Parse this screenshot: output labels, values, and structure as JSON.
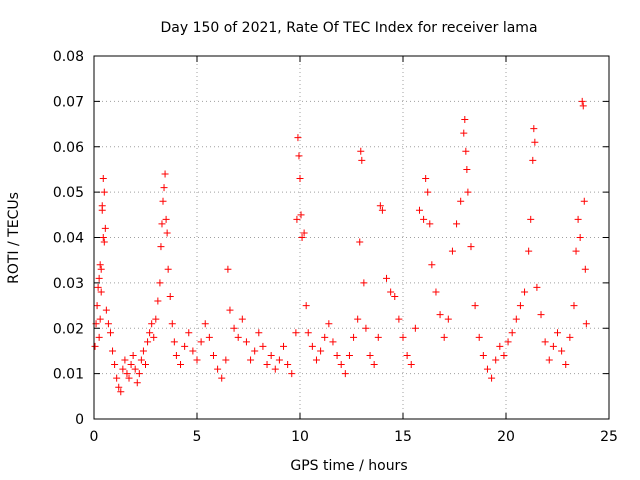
{
  "chart_data": {
    "type": "scatter",
    "title": "Day 150 of 2021, Rate Of TEC Index for receiver lama",
    "xlabel": "GPS time / hours",
    "ylabel": "ROTI / TECUs",
    "xlim": [
      0,
      25
    ],
    "ylim": [
      0,
      0.08
    ],
    "x_ticks": [
      0,
      5,
      10,
      15,
      20,
      25
    ],
    "x_tick_labels": [
      "0",
      "5",
      "10",
      "15",
      "20",
      "25"
    ],
    "y_ticks": [
      0,
      0.01,
      0.02,
      0.03,
      0.04,
      0.05,
      0.06,
      0.07,
      0.08
    ],
    "y_tick_labels": [
      "0",
      "0.01",
      "0.02",
      "0.03",
      "0.04",
      "0.05",
      "0.06",
      "0.07",
      "0.08"
    ],
    "grid": true,
    "marker": "plus",
    "color": "#ff0000",
    "series": [
      {
        "points": [
          [
            0.05,
            0.016
          ],
          [
            0.1,
            0.021
          ],
          [
            0.15,
            0.025
          ],
          [
            0.2,
            0.029
          ],
          [
            0.25,
            0.031
          ],
          [
            0.3,
            0.034
          ],
          [
            0.35,
            0.033
          ],
          [
            0.4,
            0.047
          ],
          [
            0.45,
            0.053
          ],
          [
            0.5,
            0.05
          ],
          [
            0.4,
            0.046
          ],
          [
            0.45,
            0.04
          ],
          [
            0.5,
            0.039
          ],
          [
            0.55,
            0.042
          ],
          [
            0.35,
            0.028
          ],
          [
            0.3,
            0.022
          ],
          [
            0.25,
            0.018
          ],
          [
            0.6,
            0.024
          ],
          [
            0.7,
            0.021
          ],
          [
            0.8,
            0.019
          ],
          [
            0.9,
            0.015
          ],
          [
            1.0,
            0.012
          ],
          [
            1.1,
            0.009
          ],
          [
            1.2,
            0.007
          ],
          [
            1.3,
            0.006
          ],
          [
            1.4,
            0.011
          ],
          [
            1.5,
            0.013
          ],
          [
            1.6,
            0.01
          ],
          [
            1.7,
            0.009
          ],
          [
            1.8,
            0.012
          ],
          [
            1.9,
            0.014
          ],
          [
            2.0,
            0.011
          ],
          [
            2.1,
            0.008
          ],
          [
            2.2,
            0.01
          ],
          [
            2.3,
            0.013
          ],
          [
            2.4,
            0.015
          ],
          [
            2.5,
            0.012
          ],
          [
            2.6,
            0.017
          ],
          [
            2.7,
            0.019
          ],
          [
            2.8,
            0.021
          ],
          [
            2.9,
            0.018
          ],
          [
            3.0,
            0.022
          ],
          [
            3.1,
            0.026
          ],
          [
            3.2,
            0.03
          ],
          [
            3.25,
            0.038
          ],
          [
            3.3,
            0.043
          ],
          [
            3.35,
            0.048
          ],
          [
            3.4,
            0.051
          ],
          [
            3.45,
            0.054
          ],
          [
            3.5,
            0.044
          ],
          [
            3.55,
            0.041
          ],
          [
            3.6,
            0.033
          ],
          [
            3.7,
            0.027
          ],
          [
            3.8,
            0.021
          ],
          [
            3.9,
            0.017
          ],
          [
            4.0,
            0.014
          ],
          [
            4.2,
            0.012
          ],
          [
            4.4,
            0.016
          ],
          [
            4.6,
            0.019
          ],
          [
            4.8,
            0.015
          ],
          [
            5.0,
            0.013
          ],
          [
            5.2,
            0.017
          ],
          [
            5.4,
            0.021
          ],
          [
            5.6,
            0.018
          ],
          [
            5.8,
            0.014
          ],
          [
            6.0,
            0.011
          ],
          [
            6.2,
            0.009
          ],
          [
            6.4,
            0.013
          ],
          [
            6.5,
            0.033
          ],
          [
            6.6,
            0.024
          ],
          [
            6.8,
            0.02
          ],
          [
            7.0,
            0.018
          ],
          [
            7.2,
            0.022
          ],
          [
            7.4,
            0.017
          ],
          [
            7.6,
            0.013
          ],
          [
            7.8,
            0.015
          ],
          [
            8.0,
            0.019
          ],
          [
            8.2,
            0.016
          ],
          [
            8.4,
            0.012
          ],
          [
            8.6,
            0.014
          ],
          [
            8.8,
            0.011
          ],
          [
            9.0,
            0.013
          ],
          [
            9.2,
            0.016
          ],
          [
            9.4,
            0.012
          ],
          [
            9.6,
            0.01
          ],
          [
            9.8,
            0.019
          ],
          [
            9.85,
            0.044
          ],
          [
            9.9,
            0.062
          ],
          [
            9.95,
            0.058
          ],
          [
            10.0,
            0.053
          ],
          [
            10.05,
            0.045
          ],
          [
            10.1,
            0.04
          ],
          [
            10.2,
            0.041
          ],
          [
            10.3,
            0.025
          ],
          [
            10.4,
            0.019
          ],
          [
            10.6,
            0.016
          ],
          [
            10.8,
            0.013
          ],
          [
            11.0,
            0.015
          ],
          [
            11.2,
            0.018
          ],
          [
            11.4,
            0.021
          ],
          [
            11.6,
            0.017
          ],
          [
            11.8,
            0.014
          ],
          [
            12.0,
            0.012
          ],
          [
            12.2,
            0.01
          ],
          [
            12.4,
            0.014
          ],
          [
            12.6,
            0.018
          ],
          [
            12.8,
            0.022
          ],
          [
            12.9,
            0.039
          ],
          [
            12.95,
            0.059
          ],
          [
            13.0,
            0.057
          ],
          [
            13.1,
            0.03
          ],
          [
            13.2,
            0.02
          ],
          [
            13.4,
            0.014
          ],
          [
            13.6,
            0.012
          ],
          [
            13.8,
            0.018
          ],
          [
            13.9,
            0.047
          ],
          [
            14.0,
            0.046
          ],
          [
            14.2,
            0.031
          ],
          [
            14.4,
            0.028
          ],
          [
            14.6,
            0.027
          ],
          [
            14.8,
            0.022
          ],
          [
            15.0,
            0.018
          ],
          [
            15.2,
            0.014
          ],
          [
            15.4,
            0.012
          ],
          [
            15.6,
            0.02
          ],
          [
            15.8,
            0.046
          ],
          [
            16.0,
            0.044
          ],
          [
            16.1,
            0.053
          ],
          [
            16.2,
            0.05
          ],
          [
            16.3,
            0.043
          ],
          [
            16.4,
            0.034
          ],
          [
            16.6,
            0.028
          ],
          [
            16.8,
            0.023
          ],
          [
            17.0,
            0.018
          ],
          [
            17.2,
            0.022
          ],
          [
            17.4,
            0.037
          ],
          [
            17.6,
            0.043
          ],
          [
            17.8,
            0.048
          ],
          [
            17.95,
            0.063
          ],
          [
            18.0,
            0.066
          ],
          [
            18.05,
            0.059
          ],
          [
            18.1,
            0.055
          ],
          [
            18.15,
            0.05
          ],
          [
            18.3,
            0.038
          ],
          [
            18.5,
            0.025
          ],
          [
            18.7,
            0.018
          ],
          [
            18.9,
            0.014
          ],
          [
            19.1,
            0.011
          ],
          [
            19.3,
            0.009
          ],
          [
            19.5,
            0.013
          ],
          [
            19.7,
            0.016
          ],
          [
            19.9,
            0.014
          ],
          [
            20.1,
            0.017
          ],
          [
            20.3,
            0.019
          ],
          [
            20.5,
            0.022
          ],
          [
            20.7,
            0.025
          ],
          [
            20.9,
            0.028
          ],
          [
            21.1,
            0.037
          ],
          [
            21.2,
            0.044
          ],
          [
            21.3,
            0.057
          ],
          [
            21.35,
            0.064
          ],
          [
            21.4,
            0.061
          ],
          [
            21.5,
            0.029
          ],
          [
            21.7,
            0.023
          ],
          [
            21.9,
            0.017
          ],
          [
            22.1,
            0.013
          ],
          [
            22.3,
            0.016
          ],
          [
            22.5,
            0.019
          ],
          [
            22.7,
            0.015
          ],
          [
            22.9,
            0.012
          ],
          [
            23.1,
            0.018
          ],
          [
            23.3,
            0.025
          ],
          [
            23.4,
            0.037
          ],
          [
            23.5,
            0.044
          ],
          [
            23.6,
            0.04
          ],
          [
            23.7,
            0.07
          ],
          [
            23.75,
            0.069
          ],
          [
            23.8,
            0.048
          ],
          [
            23.85,
            0.033
          ],
          [
            23.9,
            0.021
          ]
        ]
      }
    ]
  }
}
